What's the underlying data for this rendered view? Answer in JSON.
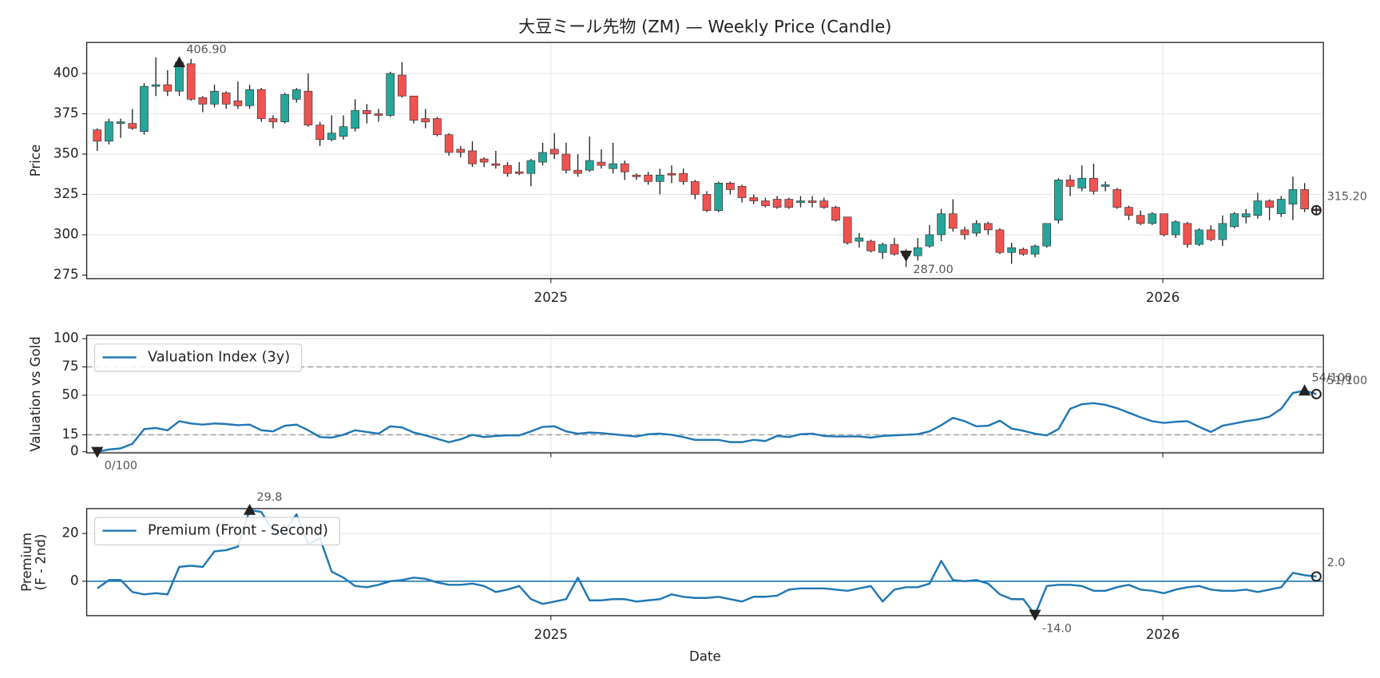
{
  "chart_data": [
    {
      "type": "candlestick",
      "title": "大豆ミール先物 (ZM) — Weekly Price (Candle)",
      "ylabel": "Price",
      "categories": [
        null,
        null,
        null,
        null,
        null,
        null,
        null,
        null,
        null,
        null,
        null,
        null,
        null,
        null,
        null,
        null,
        null,
        null,
        null,
        null,
        null,
        null,
        null,
        null,
        null,
        null,
        null,
        null,
        null,
        null,
        null,
        null,
        null,
        null,
        null,
        null,
        null,
        null,
        null,
        null,
        null,
        null,
        null,
        null,
        null,
        null,
        null,
        null,
        null,
        null,
        null,
        null,
        null,
        null,
        null,
        null,
        null,
        null,
        null,
        null,
        null,
        null,
        null,
        null,
        null,
        null,
        null,
        null,
        null,
        null,
        null,
        null,
        null,
        null,
        null,
        null,
        null,
        null,
        null,
        null,
        null,
        null,
        null,
        null,
        null,
        null,
        null,
        null,
        null,
        null,
        null,
        null,
        null,
        null,
        null,
        null,
        null,
        null,
        null,
        null,
        null,
        null,
        null,
        null,
        null
      ],
      "open": [
        365,
        358,
        369,
        369,
        364,
        392,
        393,
        389,
        406,
        385,
        381,
        388,
        383,
        380,
        390,
        372,
        370,
        384,
        389,
        368,
        359,
        361,
        366,
        377,
        375,
        374,
        399,
        386,
        372,
        372,
        362,
        353,
        352,
        347,
        344,
        343,
        339,
        338,
        345,
        353,
        350,
        340,
        340,
        345,
        341,
        344,
        337,
        337,
        333,
        338,
        338,
        333,
        325,
        315,
        332,
        330,
        323,
        321,
        322,
        322,
        320,
        321,
        321,
        317,
        311,
        296,
        296,
        289,
        294,
        290,
        287,
        293,
        300,
        313,
        303,
        301,
        307,
        303,
        289,
        291,
        288,
        293,
        309,
        334,
        329,
        335,
        330,
        328,
        317,
        312,
        307,
        313,
        300,
        307,
        294,
        303,
        297,
        305,
        311,
        312,
        321,
        313,
        319,
        328,
        316
      ],
      "high": [
        366,
        372,
        372,
        378,
        394,
        410,
        402,
        407.5,
        409,
        386,
        393,
        389,
        395,
        393,
        391,
        374,
        388,
        391,
        400,
        370,
        374,
        374,
        384,
        381,
        378,
        401,
        407,
        386,
        378,
        373,
        363,
        355,
        358,
        348,
        352,
        345,
        345,
        347,
        357,
        363,
        357,
        350,
        361,
        353,
        357,
        346,
        338,
        339,
        341,
        343,
        341,
        334,
        327,
        333,
        333,
        331,
        325,
        323,
        324,
        323,
        324,
        324,
        323,
        318,
        311,
        301,
        297,
        295,
        298,
        291,
        298,
        306,
        316,
        322,
        305,
        309,
        308,
        304,
        295,
        292,
        294,
        307,
        335,
        337,
        343,
        344,
        333,
        329,
        318,
        315,
        314,
        313,
        309,
        308,
        304,
        306,
        312,
        314,
        316,
        326,
        322,
        324,
        336,
        332,
        317
      ],
      "low": [
        352,
        356,
        360,
        365,
        362,
        386,
        386,
        386,
        383,
        376,
        379,
        378,
        378,
        378,
        370,
        366,
        369,
        382,
        367,
        355,
        358,
        359,
        364,
        369,
        370,
        373,
        385,
        369,
        366,
        361,
        349,
        348,
        342,
        342,
        341,
        336,
        337,
        330,
        343,
        347,
        338,
        336,
        339,
        341,
        338,
        334,
        334,
        331,
        325,
        332,
        331,
        322,
        314,
        314,
        325,
        320,
        319,
        317,
        316,
        316,
        317,
        317,
        316,
        308,
        294,
        292,
        289,
        285,
        287,
        280,
        284,
        292,
        296,
        302,
        297,
        299,
        300,
        288,
        282,
        287,
        286,
        292,
        307,
        324,
        327,
        325,
        327,
        316,
        309,
        306,
        306,
        299,
        298,
        292,
        293,
        296,
        293,
        304,
        307,
        310,
        309,
        311,
        309,
        314,
        314
      ],
      "close": [
        358,
        370,
        370,
        366,
        392,
        393,
        389,
        406.9,
        384,
        381,
        389,
        381,
        380,
        390,
        372,
        370,
        387,
        390,
        368,
        359,
        363,
        367,
        377,
        375,
        374,
        400,
        386,
        371,
        370,
        362,
        351,
        351,
        344,
        345,
        343,
        338,
        338,
        346,
        351,
        350,
        340,
        338,
        346,
        343,
        344,
        339,
        336,
        333,
        337,
        337,
        333,
        325,
        315,
        332,
        328,
        323,
        321,
        318,
        317,
        317,
        321,
        320,
        317,
        309,
        295,
        298,
        290,
        294,
        288,
        287,
        292,
        300,
        313,
        304,
        300,
        307,
        303,
        289,
        292,
        288,
        293,
        307,
        334,
        330,
        335,
        327,
        331,
        317,
        312,
        307,
        313,
        300,
        308,
        294,
        303,
        297,
        307,
        313,
        313,
        321,
        317,
        322,
        328,
        316,
        315.2
      ],
      "up_color": "#26a69a",
      "down_color": "#ef5350",
      "xlim": [
        -0.9,
        104.6
      ],
      "xticks": [
        {
          "value": 38.7,
          "label": "2025"
        },
        {
          "value": 90.9,
          "label": "2026"
        }
      ],
      "ylim": [
        272.8,
        419.2
      ],
      "yticks": [
        275,
        300,
        325,
        350,
        375,
        400
      ],
      "grid": true,
      "annotations": [
        {
          "x": 7,
          "value": 406.9,
          "label": "406.90",
          "marker": "triangle-up"
        },
        {
          "x": 69,
          "value": 287,
          "label": "287.00",
          "marker": "triangle-down"
        },
        {
          "x": 104,
          "value": 315.2,
          "label": "315.20",
          "marker": "circle-plus"
        }
      ]
    },
    {
      "type": "line",
      "ylabel": "Valuation vs Gold",
      "series": [
        {
          "name": "Valuation Index (3y)",
          "color": "#1f77b4",
          "values": [
            0,
            2,
            3,
            7,
            20,
            21,
            19,
            27,
            25,
            24,
            25,
            24.5,
            23.5,
            24,
            19,
            18,
            23,
            24,
            19,
            13,
            12.5,
            15,
            19,
            17.5,
            16,
            22.5,
            21.5,
            17,
            14.5,
            11.5,
            8.5,
            11,
            15,
            13,
            14,
            14.5,
            14.5,
            18,
            22,
            22.5,
            18,
            16,
            17,
            16.5,
            15.5,
            14.5,
            13.5,
            15.5,
            16,
            15,
            13,
            10.5,
            10.5,
            10.5,
            8.5,
            8.5,
            10.5,
            9.5,
            14,
            13,
            15.5,
            16,
            14,
            13.5,
            13.5,
            13.5,
            12.5,
            14,
            14.5,
            15,
            15.5,
            18,
            23.5,
            30,
            27,
            22.5,
            23,
            27.5,
            20.5,
            18.5,
            16,
            14.5,
            20,
            38,
            42,
            43,
            41.5,
            38.5,
            34.5,
            30.5,
            27,
            25.5,
            26.5,
            27,
            22,
            17.5,
            23,
            25,
            27,
            28.5,
            31,
            38,
            52,
            54,
            51
          ]
        }
      ],
      "xlim": [
        -0.9,
        104.6
      ],
      "xticks": [
        38.7,
        90.9
      ],
      "xticklabels": false,
      "ylim": [
        -1,
        103
      ],
      "yticks": [
        0,
        15,
        50,
        75,
        100
      ],
      "grid": true,
      "hlines": [
        {
          "value": 75,
          "style": "dashed",
          "color": "#999999"
        },
        {
          "value": 15,
          "style": "dashed",
          "color": "#999999"
        }
      ],
      "legend": "upper left",
      "annotations": [
        {
          "x": 0,
          "value": 0,
          "label": "0/100",
          "marker": "triangle-down"
        },
        {
          "x": 103,
          "value": 54,
          "label": "54/100",
          "marker": "triangle-up"
        },
        {
          "x": 104,
          "value": 51,
          "label": "51/100",
          "marker": "circle"
        }
      ]
    },
    {
      "type": "line",
      "ylabel": [
        "Premium",
        "(F - 2nd)"
      ],
      "xlabel": "Date",
      "series": [
        {
          "name": "Premium (Front - Second)",
          "color": "#1f77b4",
          "values": [
            -3,
            0.5,
            0.5,
            -4.5,
            -5.5,
            -5,
            -5.5,
            6,
            6.5,
            6,
            12.5,
            13,
            14.5,
            29.8,
            29,
            21,
            21,
            28,
            15.5,
            18,
            4,
            1.5,
            -2,
            -2.5,
            -1.5,
            0,
            0.5,
            1.5,
            1,
            -0.5,
            -1.5,
            -1.5,
            -1,
            -2,
            -4.5,
            -3.5,
            -2,
            -7.5,
            -9.5,
            -8.5,
            -7.5,
            1.5,
            -8,
            -8,
            -7.5,
            -7.5,
            -8.5,
            -8,
            -7.5,
            -5.5,
            -6.5,
            -7,
            -7,
            -6.5,
            -7.5,
            -8.5,
            -6.5,
            -6.5,
            -6,
            -3.5,
            -3,
            -3,
            -3,
            -3.5,
            -4,
            -3,
            -2,
            -8.5,
            -3.5,
            -2.5,
            -2.5,
            -1,
            8.5,
            0.5,
            0,
            0.5,
            -1,
            -5.5,
            -7.5,
            -7.5,
            -14,
            -2,
            -1.5,
            -1.5,
            -2,
            -4,
            -4,
            -2.5,
            -1.5,
            -3.5,
            -4,
            -5,
            -3.5,
            -2.5,
            -2,
            -3.5,
            -4,
            -4,
            -3.5,
            -4.5,
            -3.5,
            -2.5,
            3.5,
            2.5,
            2.0
          ]
        }
      ],
      "xlim": [
        -0.9,
        104.6
      ],
      "xticks": [
        {
          "value": 38.7,
          "label": "2025"
        },
        {
          "value": 90.9,
          "label": "2026"
        }
      ],
      "ylim": [
        -14.4,
        30.4
      ],
      "yticks": [
        0,
        20
      ],
      "grid": true,
      "hlines": [
        {
          "value": 0,
          "style": "solid",
          "color": "#1f77b4"
        }
      ],
      "legend": "upper left",
      "annotations": [
        {
          "x": 13,
          "value": 29.8,
          "label": "29.8",
          "marker": "triangle-up"
        },
        {
          "x": 80,
          "value": -14,
          "label": "-14.0",
          "marker": "triangle-down"
        },
        {
          "x": 104,
          "value": 2,
          "label": "2.0",
          "marker": "circle"
        }
      ]
    }
  ]
}
